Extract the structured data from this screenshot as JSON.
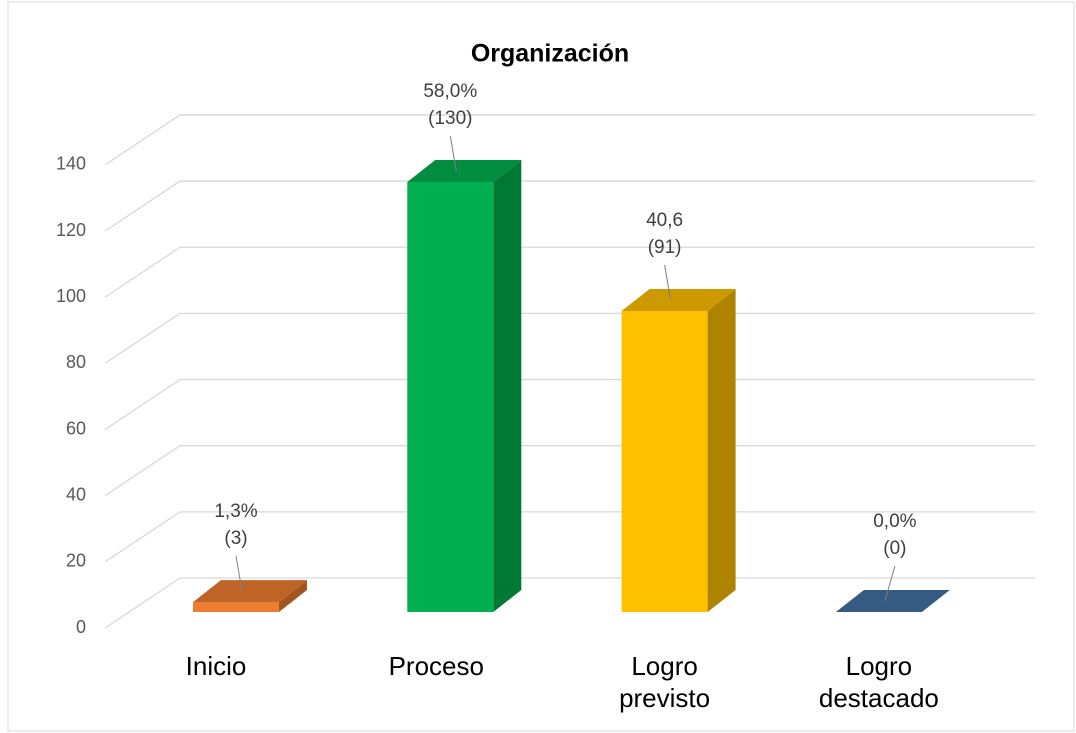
{
  "chart_data": {
    "type": "bar3d",
    "title": "Organización",
    "categories": [
      "Inicio",
      "Proceso",
      "Logro previsto",
      "Logro destacado"
    ],
    "values": [
      3,
      130,
      91,
      0
    ],
    "value_labels": [
      [
        "1,3%",
        "(3)"
      ],
      [
        "58,0%",
        "(130)"
      ],
      [
        "40,6",
        "(91)"
      ],
      [
        "0,0%",
        "(0)"
      ]
    ],
    "colors": [
      "#ed7d31",
      "#00b050",
      "#ffc000",
      "#4472a4"
    ],
    "ylim": [
      0,
      140
    ],
    "yticks": [
      0,
      20,
      40,
      60,
      80,
      100,
      120,
      140
    ],
    "grid": true
  }
}
